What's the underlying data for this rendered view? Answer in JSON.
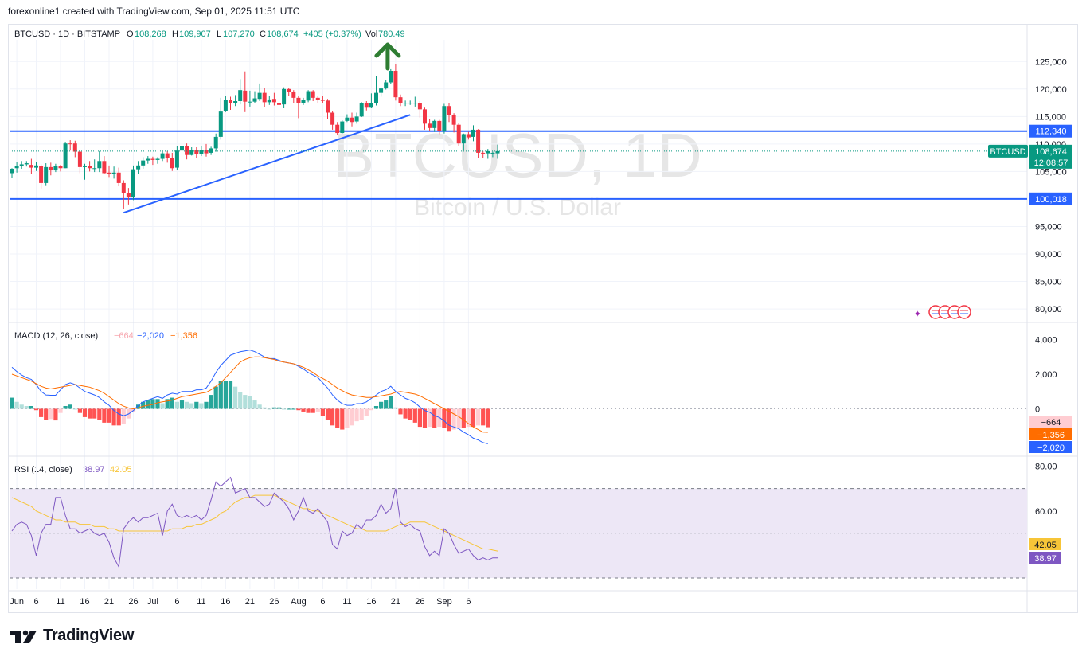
{
  "header": {
    "caption": "forexonline1 created with TradingView.com, Sep 01, 2025 11:51 UTC"
  },
  "legend": {
    "symbol": "BTCUSD · 1D · BITSTAMP",
    "o_label": "O",
    "o_value": "108,268",
    "h_label": "H",
    "h_value": "109,907",
    "l_label": "L",
    "l_value": "107,270",
    "c_label": "C",
    "c_value": "108,674",
    "change": "+405 (+0.37%)",
    "vol_label": "Vol",
    "vol_value": "780.49"
  },
  "watermark": {
    "title": "BTCUSD, 1D",
    "subtitle": "Bitcoin / U.S. Dollar"
  },
  "footer": {
    "brand": "TradingView"
  },
  "colors": {
    "up": "#089981",
    "down": "#f23645",
    "blue_line": "#2962ff",
    "macd_line": "#2962ff",
    "signal_line": "#ff6d00",
    "rsi_line": "#7e57c2",
    "rsi_ma": "#f7c538",
    "rsi_band": "#ede7f6",
    "green_arrow": "#2e7d32"
  },
  "chart_data": [
    {
      "type": "candlestick",
      "title": "BTCUSD · 1D · BITSTAMP",
      "y_axis": {
        "ticks": [
          "80,000",
          "85,000",
          "90,000",
          "95,000",
          "100,000",
          "105,000",
          "110,000",
          "115,000",
          "120,000",
          "125,000"
        ],
        "range": [
          79000,
          127500
        ]
      },
      "x_axis": {
        "ticks": [
          "Jun",
          "6",
          "11",
          "16",
          "21",
          "26",
          "Jul",
          "6",
          "11",
          "16",
          "21",
          "26",
          "Aug",
          "6",
          "11",
          "16",
          "21",
          "26",
          "Sep",
          "6"
        ]
      },
      "candles": [
        [
          104700,
          105500,
          103900,
          105600
        ],
        [
          105600,
          106000,
          104800,
          106700
        ],
        [
          106000,
          106300,
          105500,
          106900
        ],
        [
          106300,
          106500,
          105900,
          106900
        ],
        [
          106200,
          105700,
          104500,
          107300
        ],
        [
          105700,
          106100,
          105100,
          106700
        ],
        [
          106000,
          102900,
          101900,
          106300
        ],
        [
          102900,
          105800,
          102500,
          106500
        ],
        [
          105800,
          105200,
          104300,
          106600
        ],
        [
          105200,
          106000,
          104900,
          106400
        ],
        [
          106000,
          105600,
          105000,
          106200
        ],
        [
          105600,
          110100,
          105600,
          110400
        ],
        [
          110100,
          110000,
          108800,
          110700
        ],
        [
          110100,
          108600,
          107600,
          110600
        ],
        [
          108600,
          105800,
          104700,
          108800
        ],
        [
          105800,
          106000,
          103500,
          106400
        ],
        [
          106000,
          105600,
          105000,
          106900
        ],
        [
          105600,
          105600,
          104900,
          107200
        ],
        [
          105600,
          106900,
          104900,
          108700
        ],
        [
          106900,
          104700,
          104500,
          107800
        ],
        [
          104800,
          104500,
          104000,
          106100
        ],
        [
          104600,
          104800,
          103700,
          105900
        ],
        [
          104800,
          102900,
          102300,
          105700
        ],
        [
          102900,
          101100,
          98200,
          103400
        ],
        [
          101100,
          100400,
          99000,
          102000
        ],
        [
          100400,
          105400,
          99800,
          106100
        ],
        [
          105400,
          106100,
          104500,
          106900
        ],
        [
          106100,
          107000,
          105500,
          107600
        ],
        [
          107000,
          107300,
          106400,
          107800
        ],
        [
          107300,
          107100,
          106200,
          107700
        ],
        [
          107100,
          107300,
          106400,
          107600
        ],
        [
          107300,
          108300,
          106900,
          108600
        ],
        [
          108300,
          107400,
          106600,
          108700
        ],
        [
          107400,
          105600,
          105100,
          108400
        ],
        [
          105700,
          108800,
          105300,
          109600
        ],
        [
          108800,
          109600,
          107600,
          110400
        ],
        [
          109600,
          108000,
          107200,
          110100
        ],
        [
          108000,
          108900,
          107900,
          109400
        ],
        [
          108900,
          108200,
          107500,
          109400
        ],
        [
          108100,
          108900,
          107800,
          109700
        ],
        [
          108900,
          108300,
          107700,
          110000
        ],
        [
          108400,
          109200,
          108000,
          109500
        ],
        [
          109200,
          111300,
          108600,
          111900
        ],
        [
          111300,
          115900,
          110800,
          118400
        ],
        [
          116000,
          118000,
          115800,
          118800
        ],
        [
          118000,
          117400,
          116200,
          118600
        ],
        [
          117400,
          117800,
          116900,
          118900
        ],
        [
          117800,
          119800,
          117200,
          121800
        ],
        [
          119700,
          117700,
          115800,
          123200
        ],
        [
          117700,
          117700,
          116800,
          119700
        ],
        [
          117700,
          118300,
          117400,
          119600
        ],
        [
          118200,
          119300,
          117800,
          121000
        ],
        [
          119300,
          117600,
          116700,
          120200
        ],
        [
          117600,
          118100,
          117100,
          118700
        ],
        [
          118200,
          117600,
          117000,
          119300
        ],
        [
          117500,
          117100,
          116500,
          118000
        ],
        [
          117200,
          120000,
          116500,
          120300
        ],
        [
          120000,
          119500,
          118800,
          120200
        ],
        [
          119500,
          118400,
          117500,
          119800
        ],
        [
          118400,
          117400,
          114700,
          118800
        ],
        [
          117400,
          118000,
          117100,
          118400
        ],
        [
          117900,
          119600,
          117600,
          119800
        ],
        [
          119600,
          118400,
          117800,
          119800
        ],
        [
          118400,
          118000,
          117500,
          118700
        ],
        [
          118000,
          117900,
          117500,
          118800
        ],
        [
          117900,
          115700,
          114600,
          118200
        ],
        [
          115700,
          113500,
          112600,
          116000
        ],
        [
          113500,
          112000,
          111700,
          114000
        ],
        [
          112000,
          114100,
          111900,
          114300
        ],
        [
          114200,
          114800,
          114000,
          115400
        ],
        [
          114800,
          114000,
          113200,
          115700
        ],
        [
          114100,
          115000,
          113700,
          115700
        ],
        [
          115000,
          117500,
          114900,
          117600
        ],
        [
          117500,
          116600,
          116100,
          117800
        ],
        [
          116600,
          117400,
          116500,
          119200
        ],
        [
          117400,
          119300,
          117000,
          122300
        ],
        [
          119300,
          120100,
          118600,
          120300
        ],
        [
          120100,
          121200,
          119900,
          121600
        ],
        [
          121200,
          123300,
          120900,
          123600
        ],
        [
          123300,
          118500,
          117900,
          124500
        ],
        [
          118500,
          117400,
          116900,
          119000
        ],
        [
          117400,
          117500,
          116900,
          117900
        ],
        [
          117500,
          117500,
          117100,
          117900
        ],
        [
          117500,
          117500,
          116800,
          118600
        ],
        [
          117500,
          116300,
          114800,
          117800
        ],
        [
          116300,
          113700,
          112600,
          116600
        ],
        [
          113700,
          112900,
          112300,
          114600
        ],
        [
          112900,
          114200,
          112200,
          114400
        ],
        [
          114200,
          112300,
          111800,
          114400
        ],
        [
          112300,
          116900,
          111900,
          117300
        ],
        [
          116900,
          115300,
          114000,
          117400
        ],
        [
          115300,
          113500,
          112100,
          115600
        ],
        [
          113500,
          110100,
          109600,
          113800
        ],
        [
          110100,
          111800,
          108800,
          111900
        ],
        [
          111800,
          111200,
          110800,
          112200
        ],
        [
          111300,
          112600,
          110500,
          113400
        ],
        [
          112600,
          108400,
          107400,
          112700
        ],
        [
          108400,
          108300,
          107500,
          108700
        ],
        [
          108300,
          108700,
          107300,
          109100
        ],
        [
          108300,
          108400,
          107600,
          108600
        ],
        [
          108300,
          108700,
          107300,
          109900
        ]
      ],
      "horizontal_lines": [
        {
          "price": 112340,
          "label": "112,340"
        },
        {
          "price": 100018,
          "label": "100,018"
        }
      ],
      "trend_line": {
        "from_index": 23,
        "from_price": 97500,
        "to_index": 82,
        "to_price": 115300
      },
      "current_price": {
        "label": "BTCUSD",
        "value": "108,674",
        "countdown": "12:08:57"
      }
    },
    {
      "type": "line",
      "title": "MACD",
      "legend": {
        "name": "MACD (12, 26, close)",
        "hist_value": "−664",
        "macd_value": "−2,020",
        "signal_value": "−1,356"
      },
      "y_axis": {
        "ticks": [
          "4,000",
          "2,000",
          "0"
        ],
        "range": [
          -2600,
          4300
        ]
      },
      "series": [
        {
          "name": "MACD",
          "values": [
            2400,
            2150,
            1950,
            1800,
            1700,
            1400,
            1000,
            800,
            780,
            780,
            1100,
            1400,
            1500,
            1400,
            1200,
            1000,
            900,
            800,
            650,
            400,
            200,
            -100,
            -300,
            -400,
            -300,
            -100,
            200,
            400,
            500,
            600,
            700,
            600,
            800,
            900,
            850,
            1000,
            1000,
            1000,
            1100,
            1100,
            1200,
            1600,
            2100,
            2500,
            2800,
            3100,
            3200,
            3300,
            3350,
            3400,
            3300,
            3150,
            3000,
            2900,
            2900,
            2800,
            2700,
            2650,
            2600,
            2450,
            2300,
            2100,
            1950,
            1800,
            1500,
            1200,
            800,
            500,
            300,
            200,
            200,
            300,
            300,
            400,
            600,
            800,
            1000,
            1100,
            1300,
            1000,
            800,
            600,
            500,
            350,
            100,
            -100,
            -200,
            -400,
            -500,
            -700,
            -950,
            -1050,
            -1150,
            -1350,
            -1500,
            -1700,
            -1800,
            -1950,
            -2020
          ]
        },
        {
          "name": "Signal",
          "values": [
            2000,
            1900,
            1800,
            1700,
            1600,
            1450,
            1300,
            1200,
            1150,
            1200,
            1250,
            1300,
            1350,
            1400,
            1350,
            1300,
            1250,
            1150,
            1050,
            900,
            700,
            500,
            300,
            150,
            50,
            0,
            50,
            150,
            200,
            250,
            350,
            400,
            450,
            500,
            600,
            700,
            750,
            800,
            850,
            900,
            950,
            1100,
            1300,
            1500,
            1800,
            2100,
            2400,
            2700,
            2850,
            2950,
            3000,
            3000,
            2950,
            2900,
            2850,
            2750,
            2700,
            2650,
            2600,
            2500,
            2400,
            2250,
            2100,
            1900,
            1750,
            1600,
            1400,
            1200,
            1050,
            900,
            800,
            750,
            700,
            650,
            650,
            700,
            750,
            800,
            850,
            950,
            1000,
            950,
            900,
            850,
            750,
            600,
            450,
            300,
            150,
            0,
            -150,
            -300,
            -450,
            -650,
            -850,
            -1050,
            -1200,
            -1350,
            -1356
          ]
        }
      ]
    },
    {
      "type": "line",
      "title": "RSI",
      "legend": {
        "name": "RSI (14, close)",
        "rsi_value": "38.97",
        "ma_value": "42.05"
      },
      "y_axis": {
        "ticks": [
          "80.00",
          "60.00"
        ],
        "range": [
          25,
          82
        ],
        "bands": [
          30,
          70
        ],
        "midline": 50
      },
      "series": [
        {
          "name": "RSI",
          "values": [
            51,
            54,
            55,
            54,
            49,
            40,
            50,
            54,
            54,
            66,
            66,
            58,
            52,
            52,
            50,
            51,
            52,
            50,
            49,
            50,
            46,
            39,
            35,
            52,
            55,
            57,
            55,
            57,
            57,
            58,
            59,
            49,
            60,
            63,
            58,
            57,
            58,
            57,
            58,
            56,
            58,
            65,
            73,
            71,
            73,
            75,
            68,
            69,
            70,
            66,
            66,
            64,
            62,
            63,
            68,
            66,
            64,
            61,
            56,
            60,
            66,
            60,
            59,
            61,
            58,
            55,
            45,
            43,
            51,
            49,
            50,
            54,
            52,
            56,
            56,
            58,
            63,
            59,
            61,
            70,
            55,
            53,
            54,
            52,
            51,
            44,
            40,
            42,
            40,
            52,
            50,
            45,
            41,
            42,
            43,
            40,
            38,
            39,
            38,
            39,
            38.97
          ]
        },
        {
          "name": "RSI MA",
          "values": [
            66,
            65,
            64,
            63,
            62,
            60,
            59,
            58,
            57,
            56,
            56,
            55,
            55,
            55,
            54,
            54,
            54,
            53,
            53,
            53,
            52,
            52,
            51,
            51,
            51,
            51,
            51,
            51,
            51,
            51,
            51,
            51,
            51,
            52,
            52,
            52,
            53,
            53,
            54,
            54,
            55,
            56,
            57,
            59,
            60,
            62,
            64,
            65,
            66,
            66,
            67,
            67,
            67,
            67,
            67,
            66,
            65,
            64,
            63,
            62,
            61,
            61,
            60,
            60,
            59,
            58,
            57,
            56,
            55,
            54,
            53,
            52,
            52,
            51,
            51,
            51,
            51,
            51,
            52,
            53,
            54,
            54,
            55,
            55,
            55,
            55,
            54,
            53,
            52,
            51,
            50,
            49,
            48,
            47,
            46,
            45,
            44,
            43,
            43,
            42.5,
            42.05
          ]
        }
      ]
    }
  ]
}
